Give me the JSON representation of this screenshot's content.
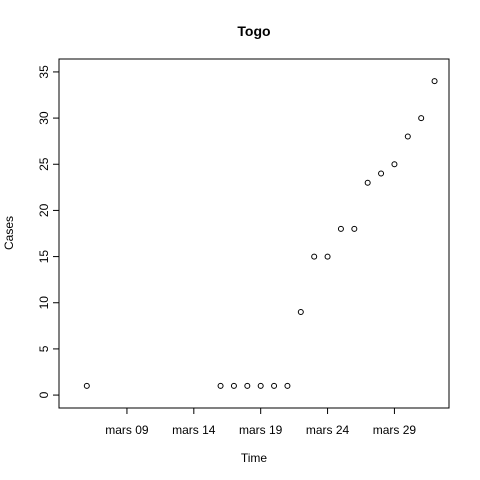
{
  "chart_data": {
    "type": "scatter",
    "title": "Togo",
    "xlabel": "Time",
    "ylabel": "Cases",
    "x_type": "date",
    "xlim": [
      "2020-03-05",
      "2020-04-01"
    ],
    "ylim": [
      0,
      35
    ],
    "x_ticks": [
      {
        "date": "2020-03-09",
        "label": "mars 09"
      },
      {
        "date": "2020-03-14",
        "label": "mars 14"
      },
      {
        "date": "2020-03-19",
        "label": "mars 19"
      },
      {
        "date": "2020-03-24",
        "label": "mars 24"
      },
      {
        "date": "2020-03-29",
        "label": "mars 29"
      }
    ],
    "y_ticks": [
      0,
      5,
      10,
      15,
      20,
      25,
      30,
      35
    ],
    "grid": false,
    "series": [
      {
        "points": [
          {
            "x": "2020-03-06",
            "y": 1
          },
          {
            "x": "2020-03-16",
            "y": 1
          },
          {
            "x": "2020-03-17",
            "y": 1
          },
          {
            "x": "2020-03-18",
            "y": 1
          },
          {
            "x": "2020-03-19",
            "y": 1
          },
          {
            "x": "2020-03-20",
            "y": 1
          },
          {
            "x": "2020-03-21",
            "y": 1
          },
          {
            "x": "2020-03-22",
            "y": 9
          },
          {
            "x": "2020-03-23",
            "y": 15
          },
          {
            "x": "2020-03-24",
            "y": 15
          },
          {
            "x": "2020-03-25",
            "y": 18
          },
          {
            "x": "2020-03-26",
            "y": 18
          },
          {
            "x": "2020-03-27",
            "y": 23
          },
          {
            "x": "2020-03-28",
            "y": 24
          },
          {
            "x": "2020-03-29",
            "y": 25
          },
          {
            "x": "2020-03-30",
            "y": 28
          },
          {
            "x": "2020-03-31",
            "y": 30
          },
          {
            "x": "2020-04-01",
            "y": 34
          }
        ]
      }
    ]
  }
}
